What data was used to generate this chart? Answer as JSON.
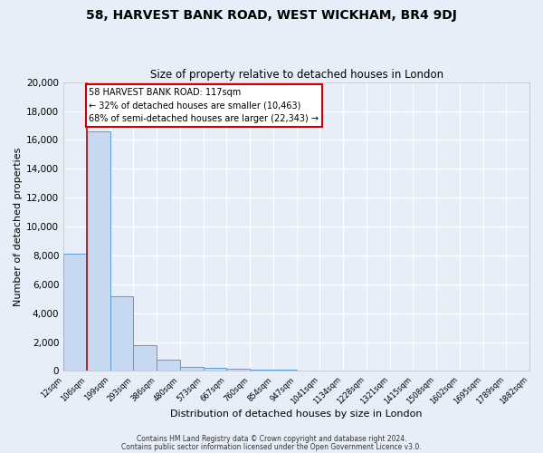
{
  "title": "58, HARVEST BANK ROAD, WEST WICKHAM, BR4 9DJ",
  "subtitle": "Size of property relative to detached houses in London",
  "xlabel": "Distribution of detached houses by size in London",
  "ylabel": "Number of detached properties",
  "bar_color": "#c6d9f1",
  "bar_edge_color": "#5b9bd5",
  "fig_bg_color": "#e8eef8",
  "ax_bg_color": "#e8eef8",
  "grid_color": "#ffffff",
  "bin_labels": [
    "12sqm",
    "106sqm",
    "199sqm",
    "293sqm",
    "386sqm",
    "480sqm",
    "573sqm",
    "667sqm",
    "760sqm",
    "854sqm",
    "947sqm",
    "1041sqm",
    "1134sqm",
    "1228sqm",
    "1321sqm",
    "1415sqm",
    "1508sqm",
    "1602sqm",
    "1695sqm",
    "1789sqm",
    "1882sqm"
  ],
  "bar_heights": [
    8100,
    16600,
    5200,
    1800,
    800,
    280,
    200,
    140,
    100,
    90,
    0,
    0,
    0,
    0,
    0,
    0,
    0,
    0,
    0,
    0
  ],
  "ylim": [
    0,
    20000
  ],
  "yticks": [
    0,
    2000,
    4000,
    6000,
    8000,
    10000,
    12000,
    14000,
    16000,
    18000,
    20000
  ],
  "red_line_x": 1.0,
  "red_line_color": "#cc0000",
  "annotation_title": "58 HARVEST BANK ROAD: 117sqm",
  "annotation_line1": "← 32% of detached houses are smaller (10,463)",
  "annotation_line2": "68% of semi-detached houses are larger (22,343) →",
  "annotation_box_edge": "#cc0000",
  "footer_line1": "Contains HM Land Registry data © Crown copyright and database right 2024.",
  "footer_line2": "Contains public sector information licensed under the Open Government Licence v3.0."
}
